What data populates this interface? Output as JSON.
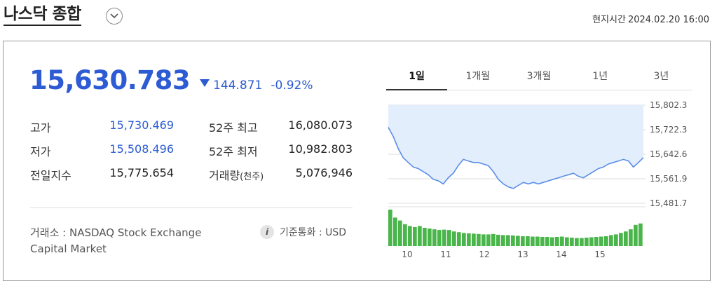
{
  "header": {
    "index_name": "나스닥 종합",
    "local_time_label": "현지시간",
    "local_time_value": "2024.02.20 16:00"
  },
  "quote": {
    "price": "15,630.783",
    "direction": "down",
    "change": "144.871",
    "change_pct": "-0.92%"
  },
  "stats": {
    "high_label": "고가",
    "high_value": "15,730.469",
    "high52_label": "52주 최고",
    "high52_value": "16,080.073",
    "low_label": "저가",
    "low_value": "15,508.496",
    "low52_label": "52주 최저",
    "low52_value": "10,982.803",
    "prev_label": "전일지수",
    "prev_value": "15,775.654",
    "volume_label": "거래량",
    "volume_unit": "(천주)",
    "volume_value": "5,076,946"
  },
  "footer": {
    "exchange_line1": "거래소 : NASDAQ Stock Exchange",
    "exchange_line2": "Capital Market",
    "currency": "기준통화 : USD"
  },
  "tabs": [
    {
      "label": "1일",
      "active": true
    },
    {
      "label": "1개월",
      "active": false
    },
    {
      "label": "3개월",
      "active": false
    },
    {
      "label": "1년",
      "active": false
    },
    {
      "label": "3년",
      "active": false
    }
  ],
  "colors": {
    "accent": "#2c5bd4",
    "line": "#5b8ee6",
    "area": "#e3eefc",
    "volume": "#4ab54a"
  },
  "chart_data": {
    "type": "line",
    "y_ticks": [
      "15,802.3",
      "15,722.3",
      "15,642.6",
      "15,561.9",
      "15,481.7"
    ],
    "x_ticks": [
      "10",
      "11",
      "12",
      "13",
      "14",
      "15"
    ],
    "ylim": [
      15481.7,
      15802.3
    ],
    "reference_value": 15775.654,
    "values": [
      15730,
      15700,
      15660,
      15630,
      15615,
      15600,
      15595,
      15585,
      15575,
      15560,
      15555,
      15545,
      15565,
      15580,
      15605,
      15625,
      15620,
      15615,
      15615,
      15610,
      15605,
      15585,
      15560,
      15545,
      15535,
      15530,
      15540,
      15550,
      15545,
      15550,
      15545,
      15550,
      15555,
      15560,
      15565,
      15570,
      15575,
      15580,
      15570,
      15565,
      15575,
      15585,
      15595,
      15600,
      15610,
      15615,
      15620,
      15625,
      15620,
      15600,
      15615,
      15631
    ],
    "volume": [
      100,
      78,
      70,
      60,
      55,
      52,
      55,
      50,
      48,
      46,
      44,
      45,
      44,
      40,
      38,
      36,
      35,
      34,
      33,
      32,
      32,
      33,
      31,
      30,
      30,
      29,
      28,
      27,
      27,
      26,
      26,
      25,
      25,
      24,
      25,
      26,
      24,
      23,
      22,
      22,
      23,
      24,
      25,
      26,
      27,
      30,
      32,
      36,
      40,
      46,
      58,
      62
    ]
  }
}
